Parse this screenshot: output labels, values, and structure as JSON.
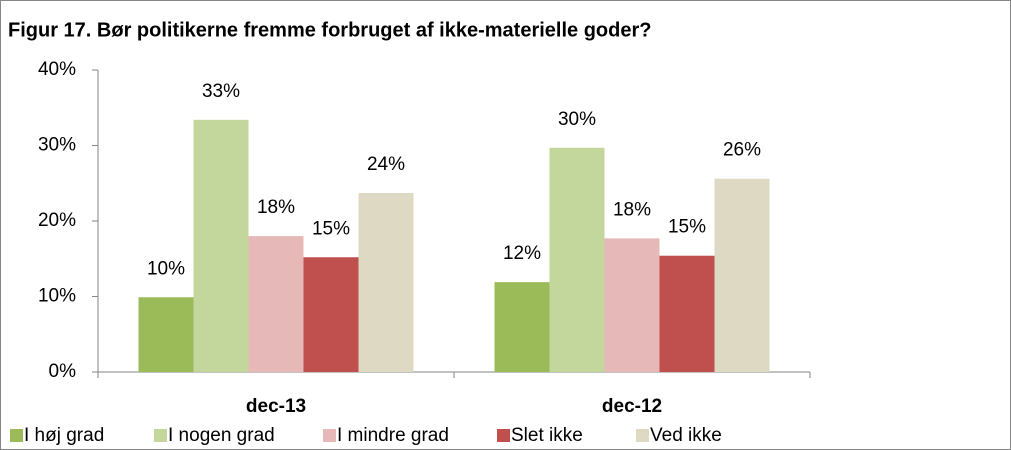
{
  "chart_data": {
    "type": "bar",
    "title": "Figur 17. Bør politikerne fremme forbruget af ikke-materielle goder?",
    "categories": [
      "dec-13",
      "dec-12"
    ],
    "series": [
      {
        "name": "I høj grad",
        "color": "#9bbb59",
        "values": [
          9.9,
          11.9
        ],
        "value_labels": [
          "10%",
          "12%"
        ]
      },
      {
        "name": "I nogen grad",
        "color": "#c3d69b",
        "values": [
          33.4,
          29.7
        ],
        "value_labels": [
          "33%",
          "30%"
        ]
      },
      {
        "name": "I mindre grad",
        "color": "#e6b9b8",
        "values": [
          18.0,
          17.7
        ],
        "value_labels": [
          "18%",
          "18%"
        ]
      },
      {
        "name": "Slet ikke",
        "color": "#c0504d",
        "values": [
          15.2,
          15.4
        ],
        "value_labels": [
          "15%",
          "15%"
        ]
      },
      {
        "name": "Ved ikke",
        "color": "#ddd9c3",
        "values": [
          23.7,
          25.6
        ],
        "value_labels": [
          "24%",
          "26%"
        ]
      }
    ],
    "ylim": [
      0,
      40
    ],
    "yticks": [
      {
        "value": 0,
        "label": "0%"
      },
      {
        "value": 10,
        "label": "10%"
      },
      {
        "value": 20,
        "label": "20%"
      },
      {
        "value": 30,
        "label": "30%"
      },
      {
        "value": 40,
        "label": "40%"
      }
    ],
    "grid": false,
    "legend": "bottom"
  }
}
